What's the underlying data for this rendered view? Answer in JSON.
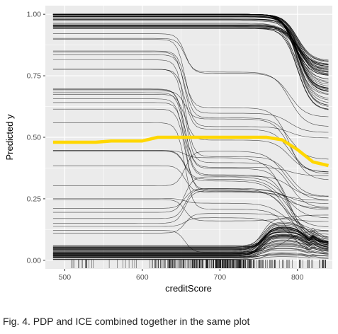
{
  "caption": "Fig. 4. PDP and ICE combined together in the same plot",
  "chart_data": {
    "type": "line",
    "xlabel": "creditScore",
    "ylabel": "Predicted y",
    "xlim": [
      475,
      845
    ],
    "ylim": [
      -0.035,
      1.035
    ],
    "x_ticks": [
      500,
      600,
      700,
      800
    ],
    "x_tick_labels": [
      "500",
      "600",
      "700",
      "800"
    ],
    "y_ticks": [
      0.0,
      0.25,
      0.5,
      0.75,
      1.0
    ],
    "y_tick_labels": [
      "0.00",
      "0.25",
      "0.50",
      "0.75",
      "1.00"
    ],
    "grid": true,
    "panel_background": "#ebebeb",
    "grid_color": "#ffffff",
    "ice_color": "#000000",
    "pdp_color": "#ffd700",
    "rug": true,
    "pdp": {
      "x": [
        485,
        500,
        540,
        560,
        600,
        620,
        660,
        700,
        740,
        760,
        780,
        800,
        820,
        840
      ],
      "y": [
        0.48,
        0.48,
        0.48,
        0.485,
        0.485,
        0.5,
        0.5,
        0.5,
        0.5,
        0.5,
        0.49,
        0.45,
        0.4,
        0.385
      ]
    }
  }
}
